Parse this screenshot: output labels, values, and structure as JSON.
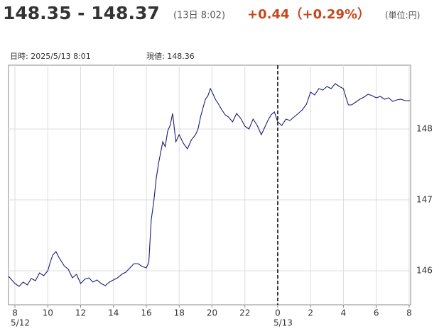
{
  "chart_data": {
    "type": "line",
    "title": "148.35 - 148.37",
    "subtitle": "(13日 8:02)",
    "change": "+0.44（+0.29%）",
    "unit": "(単位:円)",
    "info_time": "日時: 2025/5/13  8:01",
    "info_value": "現値: 148.36",
    "date_labels": [
      "5/12",
      "5/13"
    ],
    "divider_x": 24,
    "grid": true,
    "xlim": [
      7.61,
      32.09
    ],
    "ylim": [
      145.52,
      148.9
    ],
    "yticks": [
      146,
      147,
      148
    ],
    "xticks": [
      8,
      10,
      12,
      14,
      16,
      18,
      20,
      22,
      {
        "value": 24,
        "label": "0"
      },
      {
        "value": 26,
        "label": "2"
      },
      {
        "value": 28,
        "label": "4"
      },
      {
        "value": 30,
        "label": "6"
      },
      {
        "value": 32,
        "label": "8"
      }
    ],
    "series": [
      {
        "color": "#1c1c7a",
        "x": [
          7.62,
          8,
          8.25,
          8.5,
          8.75,
          9,
          9.25,
          9.5,
          9.75,
          10,
          10.15,
          10.3,
          10.5,
          10.7,
          11,
          11.25,
          11.5,
          11.75,
          12,
          12.25,
          12.5,
          12.75,
          13,
          13.25,
          13.5,
          13.75,
          14,
          14.25,
          14.5,
          14.75,
          15,
          15.25,
          15.5,
          15.75,
          16,
          16.15,
          16.3,
          16.45,
          16.6,
          16.75,
          17,
          17.15,
          17.3,
          17.45,
          17.6,
          17.8,
          18,
          18.25,
          18.5,
          18.75,
          19,
          19.15,
          19.3,
          19.45,
          19.6,
          19.75,
          19.9,
          20.05,
          20.2,
          20.4,
          20.6,
          20.8,
          21,
          21.25,
          21.5,
          21.75,
          22,
          22.25,
          22.5,
          22.75,
          23,
          23.2,
          23.4,
          23.6,
          23.8,
          24,
          24.25,
          24.5,
          24.75,
          25,
          25.25,
          25.5,
          25.75,
          26,
          26.25,
          26.5,
          26.75,
          27,
          27.25,
          27.5,
          27.75,
          28,
          28.15,
          28.3,
          28.5,
          28.75,
          29,
          29.25,
          29.5,
          29.75,
          30,
          30.25,
          30.5,
          30.75,
          31,
          31.25,
          31.5,
          31.75,
          32.05
        ],
        "values": [
          145.92,
          145.82,
          145.78,
          145.84,
          145.8,
          145.89,
          145.86,
          145.97,
          145.93,
          146.0,
          146.12,
          146.22,
          146.27,
          146.18,
          146.07,
          146.02,
          145.9,
          145.95,
          145.82,
          145.88,
          145.9,
          145.84,
          145.87,
          145.82,
          145.79,
          145.84,
          145.87,
          145.9,
          145.95,
          145.98,
          146.04,
          146.1,
          146.1,
          146.06,
          146.04,
          146.12,
          146.72,
          146.97,
          147.3,
          147.52,
          147.82,
          147.75,
          147.97,
          148.05,
          148.22,
          147.82,
          147.92,
          147.8,
          147.72,
          147.85,
          147.92,
          148.0,
          148.17,
          148.3,
          148.42,
          148.47,
          148.57,
          148.5,
          148.42,
          148.35,
          148.27,
          148.2,
          148.17,
          148.1,
          148.22,
          148.15,
          148.04,
          148.0,
          148.14,
          148.05,
          147.92,
          148.02,
          148.12,
          148.2,
          148.24,
          148.1,
          148.05,
          148.14,
          148.12,
          148.17,
          148.22,
          148.27,
          148.35,
          148.52,
          148.48,
          148.57,
          148.55,
          148.6,
          148.57,
          148.64,
          148.6,
          148.57,
          148.45,
          148.34,
          148.34,
          148.38,
          148.42,
          148.45,
          148.49,
          148.47,
          148.44,
          148.46,
          148.42,
          148.44,
          148.39,
          148.41,
          148.42,
          148.4,
          148.4
        ]
      }
    ]
  }
}
